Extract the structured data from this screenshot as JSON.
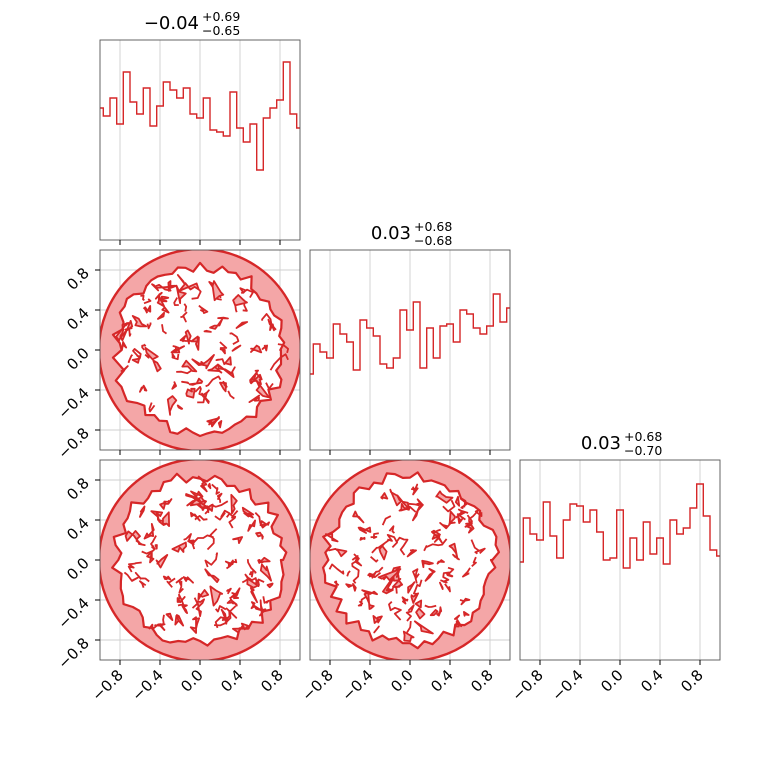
{
  "chart_data": {
    "type": "corner",
    "color": "#d62728",
    "fill_color": "#f4a6a7",
    "grid": true,
    "bins": 30,
    "axis_range": [
      -1.0,
      1.0
    ],
    "tick_values": [
      -0.8,
      -0.4,
      0.0,
      0.4,
      0.8
    ],
    "tick_labels": [
      "−0.8",
      "−0.4",
      "0.0",
      "0.4",
      "0.8"
    ],
    "panel_titles": [
      {
        "value": "−0.04",
        "plus": "+0.69",
        "minus": "−0.65"
      },
      {
        "value": "0.03",
        "plus": "+0.68",
        "minus": "−0.68"
      },
      {
        "value": "0.03",
        "plus": "+0.68",
        "minus": "−0.70"
      }
    ],
    "histograms": [
      [
        0.66,
        0.62,
        0.71,
        0.58,
        0.84,
        0.69,
        0.63,
        0.76,
        0.57,
        0.67,
        0.79,
        0.75,
        0.71,
        0.76,
        0.63,
        0.61,
        0.71,
        0.55,
        0.54,
        0.52,
        0.74,
        0.56,
        0.49,
        0.58,
        0.35,
        0.61,
        0.66,
        0.7,
        0.89,
        0.63,
        0.56
      ],
      [
        0.38,
        0.53,
        0.49,
        0.46,
        0.63,
        0.58,
        0.54,
        0.4,
        0.65,
        0.61,
        0.57,
        0.43,
        0.41,
        0.46,
        0.7,
        0.6,
        0.74,
        0.41,
        0.61,
        0.46,
        0.62,
        0.63,
        0.54,
        0.7,
        0.68,
        0.61,
        0.58,
        0.62,
        0.78,
        0.64,
        0.71
      ],
      [
        0.49,
        0.71,
        0.63,
        0.6,
        0.79,
        0.62,
        0.51,
        0.7,
        0.78,
        0.77,
        0.69,
        0.75,
        0.64,
        0.5,
        0.51,
        0.75,
        0.46,
        0.61,
        0.5,
        0.69,
        0.53,
        0.61,
        0.48,
        0.7,
        0.63,
        0.66,
        0.76,
        0.88,
        0.72,
        0.55,
        0.52
      ]
    ]
  }
}
